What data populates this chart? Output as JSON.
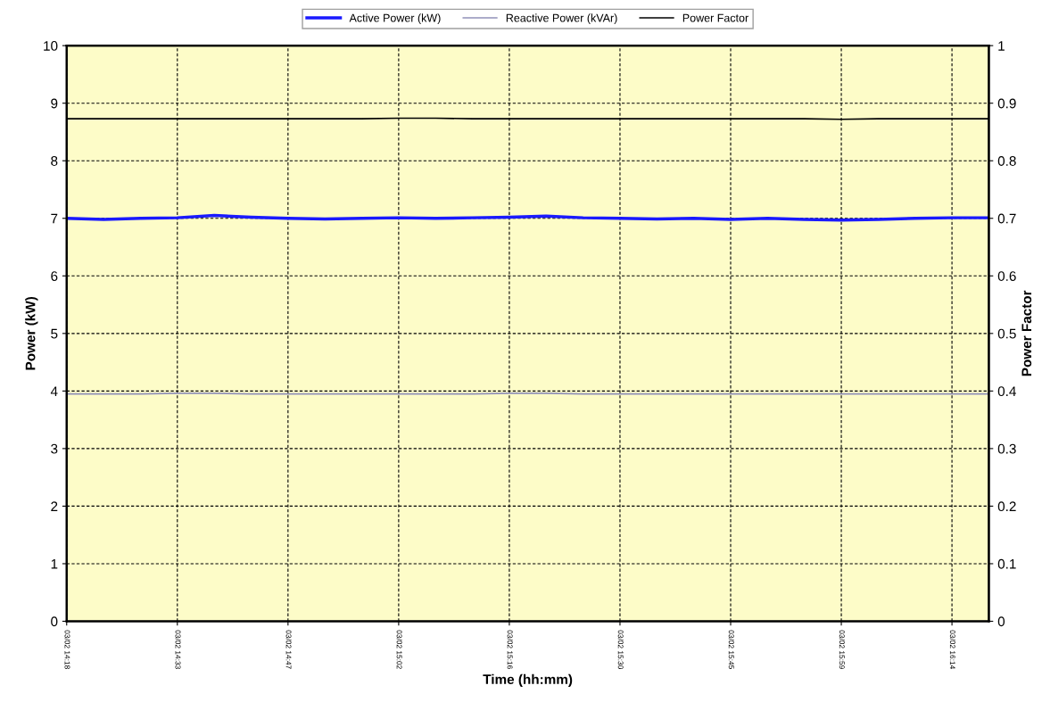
{
  "chart_data": {
    "type": "line",
    "xlabel": "Time (hh:mm)",
    "ylabel": "Power (kW)",
    "y2label": "Power Factor",
    "categories": [
      "03/02 14:18",
      null,
      null,
      "03/02 14:33",
      null,
      null,
      "03/02 14:47",
      null,
      null,
      "03/02 15:02",
      null,
      null,
      "03/02 15:16",
      null,
      null,
      "03/02 15:30",
      null,
      null,
      "03/02 15:45",
      null,
      null,
      "03/02 15:59",
      null,
      null,
      "03/02 16:14",
      null
    ],
    "ylim": [
      0,
      10
    ],
    "yticks": [
      0,
      1,
      2,
      3,
      4,
      5,
      6,
      7,
      8,
      9,
      10
    ],
    "y2lim": [
      0,
      1
    ],
    "y2ticks": [
      0,
      0.1,
      0.2,
      0.3,
      0.4,
      0.5,
      0.6,
      0.7,
      0.8,
      0.9,
      1
    ],
    "series": [
      {
        "name": "Active Power (kW)",
        "color": "#1a1aff",
        "values": [
          7.0,
          6.98,
          7.0,
          7.01,
          7.05,
          7.02,
          7.0,
          6.99,
          7.0,
          7.01,
          7.0,
          7.01,
          7.02,
          7.04,
          7.01,
          7.0,
          6.99,
          7.0,
          6.98,
          7.0,
          6.98,
          6.97,
          6.98,
          7.0,
          7.01,
          7.01
        ]
      },
      {
        "name": "Reactive Power (kVAr)",
        "color": "#9090b8",
        "values": [
          3.95,
          3.95,
          3.95,
          3.96,
          3.96,
          3.95,
          3.95,
          3.95,
          3.95,
          3.95,
          3.95,
          3.95,
          3.96,
          3.96,
          3.95,
          3.95,
          3.95,
          3.95,
          3.95,
          3.95,
          3.95,
          3.95,
          3.95,
          3.95,
          3.95,
          3.95
        ]
      },
      {
        "name": "Power Factor",
        "color": "#000000",
        "axis": "y2",
        "values": [
          0.873,
          0.873,
          0.873,
          0.873,
          0.873,
          0.873,
          0.873,
          0.873,
          0.873,
          0.874,
          0.874,
          0.873,
          0.873,
          0.873,
          0.873,
          0.873,
          0.873,
          0.873,
          0.873,
          0.873,
          0.873,
          0.872,
          0.873,
          0.873,
          0.873,
          0.873
        ]
      }
    ],
    "grid": true,
    "legend": "top",
    "marker": "none",
    "line_style": "solid"
  }
}
